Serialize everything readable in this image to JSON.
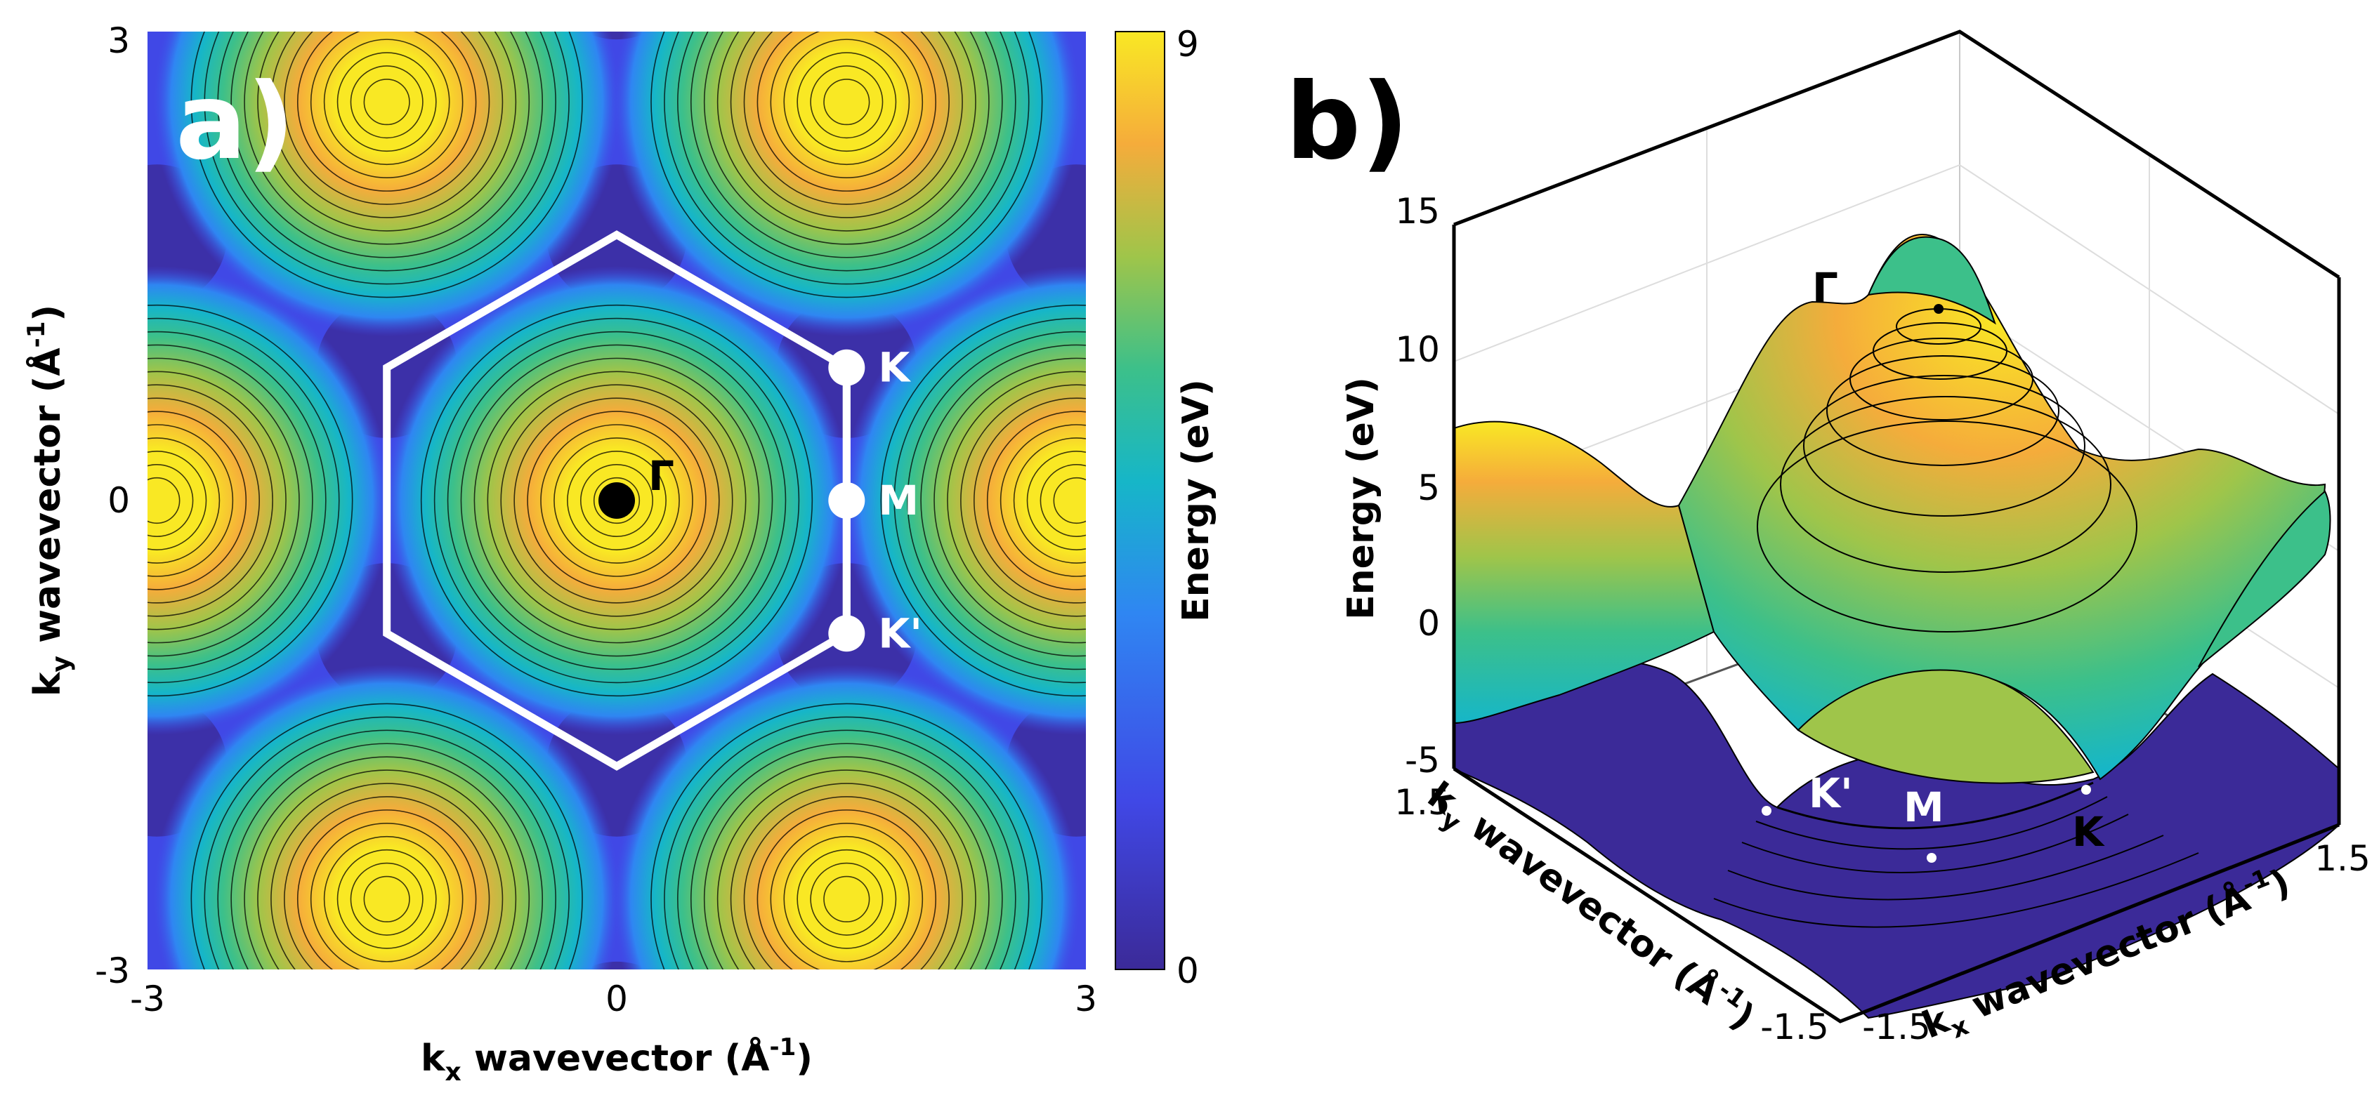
{
  "figure": {
    "panel_a_label": "a)",
    "panel_b_label": "b)"
  },
  "chart_data": [
    {
      "type": "heatmap",
      "panel": "a)",
      "title": "",
      "xlabel": "k",
      "xlabel_sub": "x",
      "xlabel_rest": " wavevector (Å",
      "xlabel_sup": "-1",
      "xlabel_end": ")",
      "ylabel": "k",
      "ylabel_sub": "y",
      "ylabel_rest": " wavevector (Å",
      "ylabel_sup": "-1",
      "ylabel_end": ")",
      "xlim": [
        -3,
        3
      ],
      "ylim": [
        -3,
        3
      ],
      "xticks": [
        "-3",
        "0",
        "3"
      ],
      "yticks": [
        "-3",
        "0",
        "3"
      ],
      "colorbar": {
        "label": "Energy (eV)",
        "range": [
          0,
          9
        ],
        "ticks": [
          "0",
          "9"
        ],
        "colors": [
          "#3b2a98",
          "#4048e6",
          "#2f86f2",
          "#16b6c8",
          "#3cc08a",
          "#9fc54a",
          "#f5ac3b",
          "#f9e824"
        ]
      },
      "brillouin_zone": {
        "vertices": [
          [
            0,
            1.7
          ],
          [
            1.47,
            0.85
          ],
          [
            1.47,
            -0.85
          ],
          [
            0,
            -1.7
          ],
          [
            -1.47,
            -0.85
          ],
          [
            -1.47,
            0.85
          ]
        ],
        "points": [
          {
            "name": "Γ",
            "x": 0,
            "y": 0
          },
          {
            "name": "K",
            "x": 1.47,
            "y": 0.85
          },
          {
            "name": "M",
            "x": 1.47,
            "y": 0
          },
          {
            "name": "K'",
            "x": 1.47,
            "y": -0.85
          }
        ]
      },
      "energy_maxima": [
        [
          0,
          0
        ],
        [
          -2.94,
          0
        ],
        [
          2.94,
          0
        ],
        [
          -1.47,
          2.55
        ],
        [
          1.47,
          2.55
        ],
        [
          -1.47,
          -2.55
        ],
        [
          1.47,
          -2.55
        ]
      ]
    },
    {
      "type": "surface3d",
      "panel": "b)",
      "zlabel": "Energy (eV)",
      "zlim": [
        -5,
        15
      ],
      "zticks": [
        "-5",
        "0",
        "5",
        "10",
        "15"
      ],
      "xlabel": "k",
      "xlabel_sub": "x",
      "xlabel_rest": " wavevector (Å",
      "xlabel_sup": "-1",
      "xlabel_end": ")",
      "ylabel": "k",
      "ylabel_sub": "y",
      "ylabel_rest": " wavevector (Å",
      "ylabel_sup": "-1",
      "ylabel_end": ")",
      "xticks": [
        "-1.5",
        "1.5"
      ],
      "yticks": [
        "1.5",
        "-1.5"
      ],
      "points": [
        {
          "name": "Γ",
          "energy": 11.5
        },
        {
          "name": "K",
          "energy": -3
        },
        {
          "name": "M",
          "energy": -4
        },
        {
          "name": "K'",
          "energy": -3
        }
      ]
    }
  ]
}
